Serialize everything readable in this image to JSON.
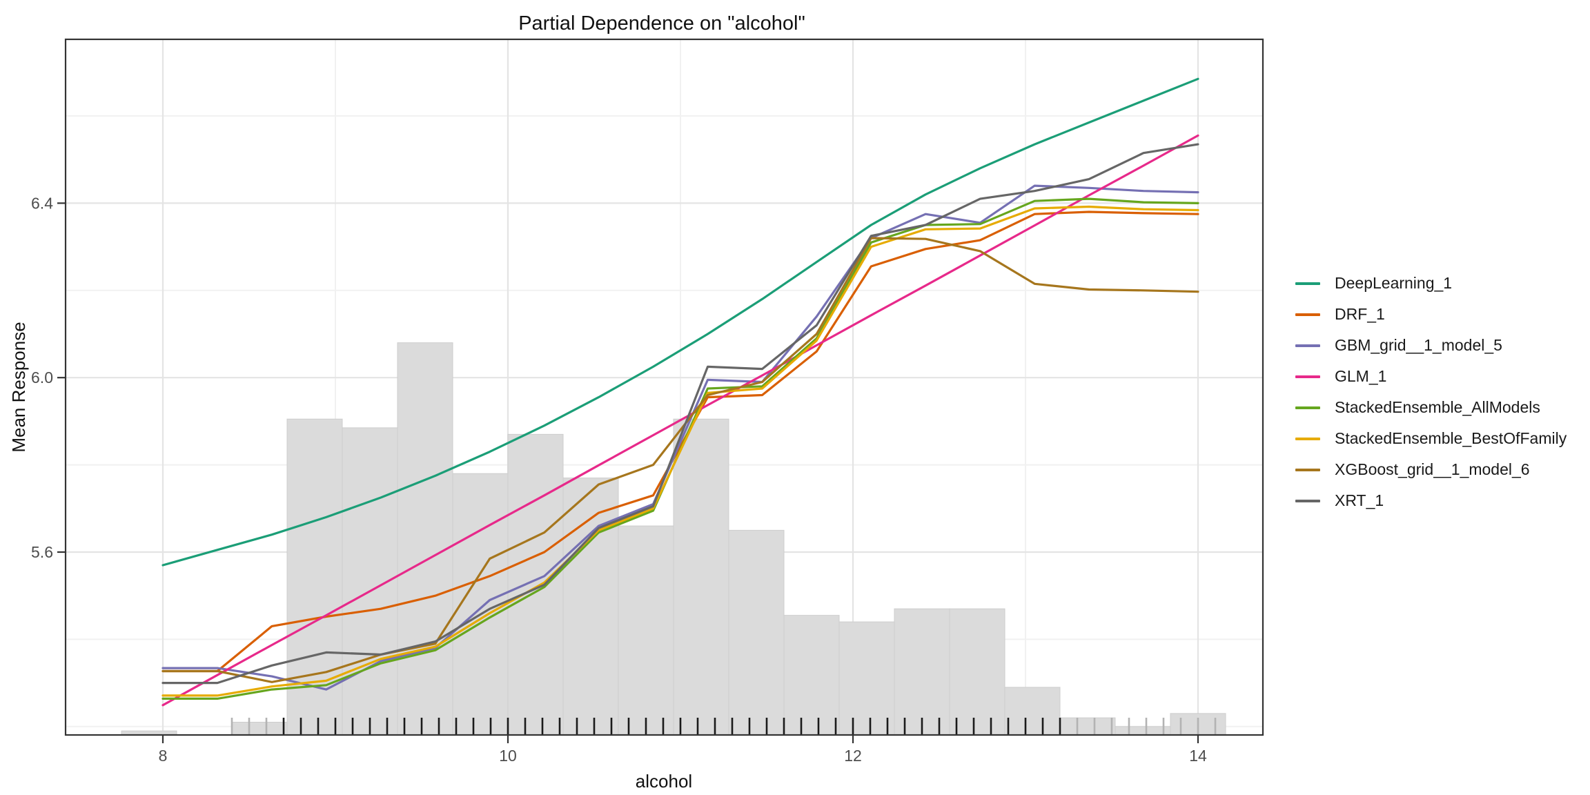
{
  "title": "Partial Dependence on \"alcohol\"",
  "chart_data": {
    "type": "line",
    "title": "Partial Dependence on \"alcohol\"",
    "xlabel": "alcohol",
    "ylabel": "Mean Response",
    "x_ticks": [
      8,
      10,
      12,
      14
    ],
    "x_minor_gridlines": [
      9,
      11,
      13
    ],
    "y_ticks": [
      5.6,
      6.0,
      6.4
    ],
    "y_minor_gridlines": [
      5.2,
      5.4,
      5.8,
      6.2,
      6.6
    ],
    "x_domain": [
      7.44,
      14.38
    ],
    "y_domain": [
      5.18,
      6.78
    ],
    "grid": "on",
    "legend_position": "right",
    "x": [
      8.0,
      8.316,
      8.632,
      8.947,
      9.263,
      9.579,
      9.895,
      10.211,
      10.526,
      10.842,
      11.158,
      11.474,
      11.789,
      12.105,
      12.421,
      12.737,
      13.053,
      13.368,
      13.684,
      14.0
    ],
    "series": [
      {
        "name": "DeepLearning_1",
        "color": "#1B9E77",
        "values": [
          5.57,
          5.605,
          5.64,
          5.68,
          5.725,
          5.775,
          5.83,
          5.89,
          5.955,
          6.025,
          6.1,
          6.18,
          6.265,
          6.35,
          6.42,
          6.48,
          6.535,
          6.585,
          6.635,
          6.685
        ]
      },
      {
        "name": "DRF_1",
        "color": "#D95F02",
        "values": [
          5.327,
          5.327,
          5.43,
          5.452,
          5.47,
          5.5,
          5.545,
          5.6,
          5.69,
          5.73,
          5.955,
          5.96,
          6.06,
          6.255,
          6.295,
          6.315,
          6.375,
          6.38,
          6.377,
          6.375
        ]
      },
      {
        "name": "GBM_grid__1_model_5",
        "color": "#7570B3",
        "values": [
          5.334,
          5.334,
          5.315,
          5.285,
          5.35,
          5.38,
          5.49,
          5.545,
          5.66,
          5.71,
          5.995,
          5.99,
          6.14,
          6.32,
          6.375,
          6.355,
          6.44,
          6.435,
          6.428,
          6.425
        ]
      },
      {
        "name": "GLM_1",
        "color": "#E7298A",
        "values": [
          5.249,
          5.318,
          5.387,
          5.455,
          5.524,
          5.593,
          5.662,
          5.73,
          5.799,
          5.868,
          5.937,
          6.005,
          6.074,
          6.143,
          6.211,
          6.28,
          6.349,
          6.418,
          6.486,
          6.555
        ]
      },
      {
        "name": "StackedEnsemble_AllModels",
        "color": "#66A61E",
        "values": [
          5.264,
          5.264,
          5.285,
          5.295,
          5.345,
          5.375,
          5.45,
          5.52,
          5.645,
          5.695,
          5.975,
          5.98,
          6.09,
          6.31,
          6.35,
          6.352,
          6.405,
          6.41,
          6.402,
          6.4
        ]
      },
      {
        "name": "StackedEnsemble_BestOfFamily",
        "color": "#E6AB02",
        "values": [
          5.271,
          5.271,
          5.292,
          5.305,
          5.355,
          5.383,
          5.46,
          5.53,
          5.65,
          5.7,
          5.965,
          5.975,
          6.085,
          6.3,
          6.34,
          6.342,
          6.388,
          6.392,
          6.386,
          6.384
        ]
      },
      {
        "name": "XGBoost_grid__1_model_6",
        "color": "#A6761D",
        "values": [
          5.327,
          5.327,
          5.302,
          5.325,
          5.365,
          5.39,
          5.585,
          5.645,
          5.755,
          5.8,
          5.96,
          5.99,
          6.1,
          6.32,
          6.318,
          6.29,
          6.215,
          6.202,
          6.2,
          6.197
        ]
      },
      {
        "name": "XRT_1",
        "color": "#666666",
        "values": [
          5.3,
          5.3,
          5.34,
          5.37,
          5.365,
          5.395,
          5.47,
          5.525,
          5.655,
          5.705,
          6.025,
          6.02,
          6.12,
          6.325,
          6.35,
          6.41,
          6.428,
          6.455,
          6.515,
          6.535
        ]
      }
    ],
    "histogram": {
      "bin_edges": [
        7.76,
        8.08,
        8.4,
        8.72,
        9.04,
        9.36,
        9.68,
        10.0,
        10.32,
        10.64,
        10.96,
        11.28,
        11.6,
        11.92,
        12.24,
        12.56,
        12.88,
        13.2,
        13.52,
        13.84,
        14.16
      ],
      "tops": [
        5.19,
        null,
        5.21,
        5.905,
        5.885,
        6.08,
        5.78,
        5.87,
        5.77,
        5.66,
        5.905,
        5.65,
        5.455,
        5.44,
        5.47,
        5.47,
        5.29,
        5.22,
        5.2,
        5.23
      ]
    },
    "rug": {
      "dark": [
        8.7,
        8.8,
        8.9,
        9.0,
        9.1,
        9.2,
        9.3,
        9.4,
        9.5,
        9.6,
        9.7,
        9.8,
        9.9,
        10.0,
        10.1,
        10.2,
        10.3,
        10.4,
        10.5,
        10.6,
        10.7,
        10.8,
        10.9,
        11.0,
        11.1,
        11.2,
        11.3,
        11.4,
        11.5,
        11.6,
        11.7,
        11.8,
        11.9,
        12.0,
        12.1,
        12.2,
        12.3,
        12.4,
        12.5,
        12.6,
        12.7,
        12.8,
        12.9,
        13.0,
        13.1,
        13.2
      ],
      "light": [
        8.4,
        8.5,
        8.6,
        13.3,
        13.4,
        13.5,
        13.6,
        13.7,
        13.8,
        13.9,
        14.0,
        14.1
      ]
    },
    "colors": {
      "hist_fill": "#DBDBDB",
      "hist_stroke": "#CDCDCD",
      "grid_major": "#E4E4E4",
      "grid_minor": "#F1F1F1",
      "panel_border": "#333333",
      "axis_tick": "#333333",
      "tick_label": "#4D4D4D",
      "text": "#111111",
      "rug_dark": "#1A1A1A",
      "rug_light": "#B3B3B3",
      "background": "#FFFFFF"
    }
  }
}
